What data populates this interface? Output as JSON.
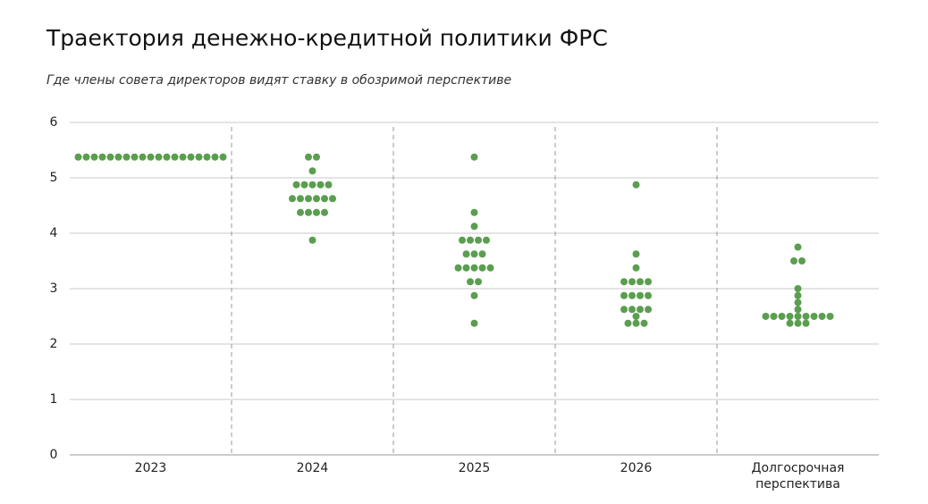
{
  "chart_data": {
    "type": "dot_plot",
    "title": "Траектория денежно-кредитной политики ФРС",
    "subtitle": "Где члены совета директоров видят ставку в обозримой перспективе",
    "categories": [
      "2023",
      "2024",
      "2025",
      "2026",
      "Долгосрочная перспектива"
    ],
    "color": "#5a9e4f",
    "values": [
      [
        5.375,
        5.375,
        5.375,
        5.375,
        5.375,
        5.375,
        5.375,
        5.375,
        5.375,
        5.375,
        5.375,
        5.375,
        5.375,
        5.375,
        5.375,
        5.375,
        5.375,
        5.375,
        5.375
      ],
      [
        5.375,
        5.375,
        5.125,
        4.875,
        4.875,
        4.875,
        4.875,
        4.875,
        4.625,
        4.625,
        4.625,
        4.625,
        4.625,
        4.625,
        4.375,
        4.375,
        4.375,
        4.375,
        3.875
      ],
      [
        5.375,
        4.375,
        4.125,
        3.875,
        3.875,
        3.875,
        3.875,
        3.625,
        3.625,
        3.625,
        3.375,
        3.375,
        3.375,
        3.375,
        3.375,
        3.125,
        3.125,
        2.875,
        2.375
      ],
      [
        4.875,
        3.625,
        3.375,
        3.125,
        3.125,
        3.125,
        3.125,
        2.875,
        2.875,
        2.875,
        2.875,
        2.625,
        2.625,
        2.625,
        2.625,
        2.5,
        2.375,
        2.375,
        2.375
      ],
      [
        3.75,
        3.5,
        3.5,
        3.0,
        2.875,
        2.75,
        2.625,
        2.5,
        2.5,
        2.5,
        2.5,
        2.5,
        2.5,
        2.5,
        2.5,
        2.5,
        2.375,
        2.375,
        2.375
      ]
    ],
    "ylim": [
      0,
      6
    ],
    "yticks": [
      0,
      1,
      2,
      3,
      4,
      5,
      6
    ],
    "grid": true
  }
}
